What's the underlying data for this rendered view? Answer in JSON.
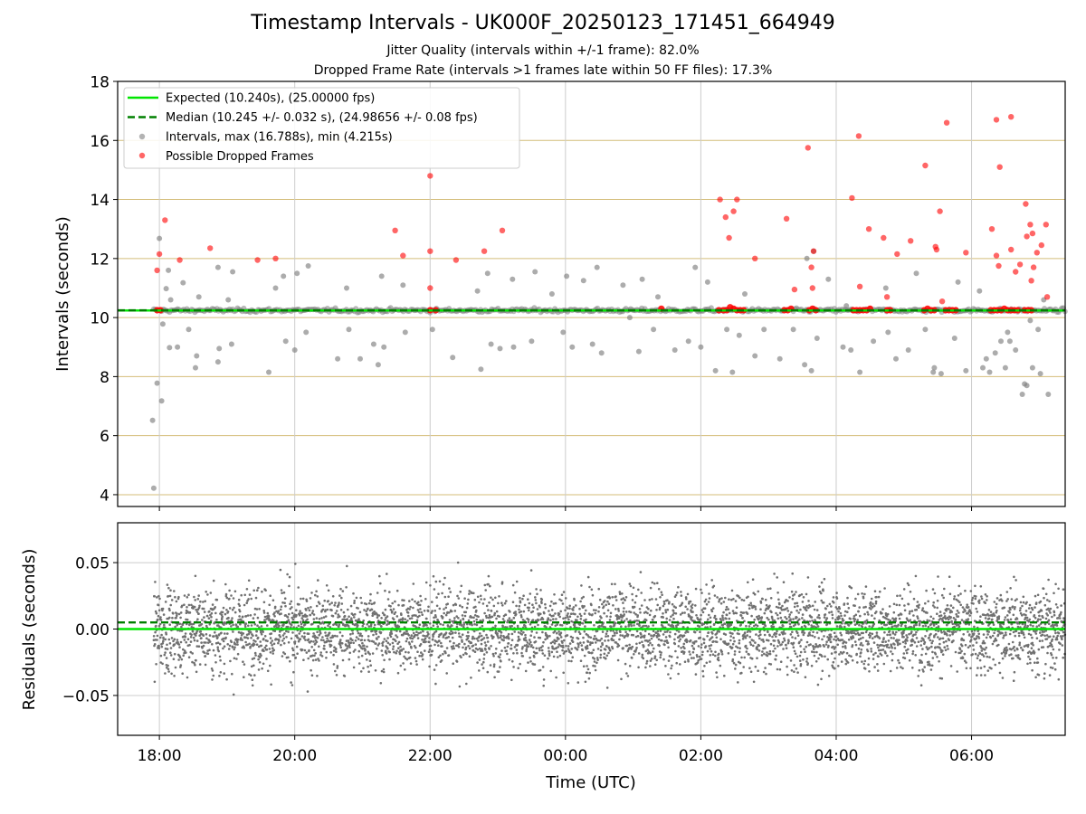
{
  "title": "Timestamp Intervals - UK000F_20250123_171451_664949",
  "subtitle1": "Jitter Quality (intervals within +/-1 frame): 82.0%",
  "subtitle2": "Dropped Frame Rate (intervals >1 frames late within 50 FF files): 17.3%",
  "colors": {
    "expected": "#00e600",
    "median": "#008000",
    "intervals": "#808080",
    "dropped": "#ff0000",
    "hgrid": "#d4bd7a",
    "vgrid": "#cccccc"
  },
  "chart_data": [
    {
      "type": "scatter",
      "ylabel": "Intervals (seconds)",
      "xlim": [
        "17:23",
        "07:23"
      ],
      "ylim": [
        3.6,
        18
      ],
      "yticks": [
        4,
        6,
        8,
        10,
        12,
        14,
        16,
        18
      ],
      "grid": true,
      "legend_position": "top-left",
      "legend": [
        "Expected (10.240s), (25.00000 fps)",
        "Median (10.245 +/- 0.032 s), (24.98656 +/- 0.08 fps)",
        "Intervals, max (16.788s), min (4.215s)",
        "Possible Dropped Frames"
      ],
      "expected_interval": 10.24,
      "median_interval": 10.245,
      "intervals_outliers": [
        [
          "17:55",
          4.22
        ],
        [
          "17:54",
          6.52
        ],
        [
          "17:58",
          7.78
        ],
        [
          "18:02",
          7.18
        ],
        [
          "18:00",
          12.68
        ],
        [
          "18:03",
          9.78
        ],
        [
          "18:06",
          10.98
        ],
        [
          "18:08",
          11.6
        ],
        [
          "18:09",
          8.98
        ],
        [
          "18:10",
          10.6
        ],
        [
          "18:16",
          9.0
        ],
        [
          "18:21",
          11.18
        ],
        [
          "18:26",
          9.6
        ],
        [
          "18:32",
          8.3
        ],
        [
          "18:33",
          8.7
        ],
        [
          "18:35",
          10.7
        ],
        [
          "18:52",
          11.7
        ],
        [
          "18:52",
          8.5
        ],
        [
          "18:53",
          8.95
        ],
        [
          "19:01",
          10.6
        ],
        [
          "19:04",
          9.1
        ],
        [
          "19:05",
          11.55
        ],
        [
          "19:37",
          8.15
        ],
        [
          "19:43",
          11.0
        ],
        [
          "19:50",
          11.4
        ],
        [
          "19:52",
          9.2
        ],
        [
          "20:00",
          8.9
        ],
        [
          "20:02",
          11.5
        ],
        [
          "20:10",
          9.5
        ],
        [
          "20:12",
          11.75
        ],
        [
          "20:38",
          8.6
        ],
        [
          "20:46",
          11.0
        ],
        [
          "20:48",
          9.6
        ],
        [
          "20:58",
          8.6
        ],
        [
          "21:10",
          9.1
        ],
        [
          "21:14",
          8.4
        ],
        [
          "21:17",
          11.4
        ],
        [
          "21:19",
          9.0
        ],
        [
          "21:36",
          11.1
        ],
        [
          "21:38",
          9.5
        ],
        [
          "22:02",
          9.6
        ],
        [
          "22:20",
          8.65
        ],
        [
          "22:42",
          10.9
        ],
        [
          "22:45",
          8.25
        ],
        [
          "22:51",
          11.5
        ],
        [
          "22:54",
          9.1
        ],
        [
          "23:02",
          8.95
        ],
        [
          "23:13",
          11.3
        ],
        [
          "23:14",
          9.0
        ],
        [
          "23:30",
          9.2
        ],
        [
          "23:33",
          11.55
        ],
        [
          "23:48",
          10.8
        ],
        [
          "23:58",
          9.5
        ],
        [
          "00:01",
          11.4
        ],
        [
          "00:06",
          9.0
        ],
        [
          "00:16",
          11.25
        ],
        [
          "00:24",
          9.1
        ],
        [
          "00:28",
          11.7
        ],
        [
          "00:32",
          8.8
        ],
        [
          "00:51",
          11.1
        ],
        [
          "00:57",
          10.0
        ],
        [
          "01:05",
          8.85
        ],
        [
          "01:08",
          11.3
        ],
        [
          "01:18",
          9.6
        ],
        [
          "01:22",
          10.7
        ],
        [
          "01:37",
          8.9
        ],
        [
          "01:49",
          9.2
        ],
        [
          "01:55",
          11.7
        ],
        [
          "02:00",
          9.0
        ],
        [
          "02:06",
          11.2
        ],
        [
          "02:13",
          8.2
        ],
        [
          "02:23",
          9.6
        ],
        [
          "02:28",
          8.15
        ],
        [
          "02:34",
          9.4
        ],
        [
          "02:39",
          10.8
        ],
        [
          "02:48",
          8.7
        ],
        [
          "02:56",
          9.6
        ],
        [
          "03:10",
          8.6
        ],
        [
          "03:22",
          9.6
        ],
        [
          "03:32",
          8.4
        ],
        [
          "03:34",
          12.0
        ],
        [
          "03:38",
          8.2
        ],
        [
          "03:40",
          12.25
        ],
        [
          "03:43",
          9.3
        ],
        [
          "03:53",
          11.3
        ],
        [
          "04:06",
          9.0
        ],
        [
          "04:09",
          10.4
        ],
        [
          "04:13",
          8.9
        ],
        [
          "04:21",
          8.15
        ],
        [
          "04:33",
          9.2
        ],
        [
          "04:44",
          11.0
        ],
        [
          "04:46",
          9.5
        ],
        [
          "04:53",
          8.6
        ],
        [
          "05:04",
          8.9
        ],
        [
          "05:11",
          11.5
        ],
        [
          "05:19",
          9.6
        ],
        [
          "05:26",
          8.15
        ],
        [
          "05:27",
          8.3
        ],
        [
          "05:33",
          8.1
        ],
        [
          "05:45",
          9.3
        ],
        [
          "05:48",
          11.2
        ],
        [
          "05:55",
          8.2
        ],
        [
          "06:07",
          10.9
        ],
        [
          "06:10",
          8.3
        ],
        [
          "06:13",
          8.6
        ],
        [
          "06:16",
          8.15
        ],
        [
          "06:21",
          8.8
        ],
        [
          "06:26",
          9.2
        ],
        [
          "06:30",
          8.3
        ],
        [
          "06:32",
          9.5
        ],
        [
          "06:34",
          9.2
        ],
        [
          "06:39",
          8.9
        ],
        [
          "06:45",
          7.4
        ],
        [
          "06:47",
          7.75
        ],
        [
          "06:49",
          7.7
        ],
        [
          "06:52",
          9.9
        ],
        [
          "06:54",
          8.3
        ],
        [
          "06:59",
          9.6
        ],
        [
          "07:01",
          8.1
        ],
        [
          "07:04",
          10.6
        ],
        [
          "07:08",
          7.4
        ]
      ],
      "possible_dropped_frames": [
        [
          "17:58",
          11.6
        ],
        [
          "18:00",
          12.15
        ],
        [
          "18:05",
          13.3
        ],
        [
          "18:18",
          11.95
        ],
        [
          "18:45",
          12.35
        ],
        [
          "19:27",
          11.95
        ],
        [
          "19:43",
          12.0
        ],
        [
          "21:29",
          12.95
        ],
        [
          "21:36",
          12.1
        ],
        [
          "22:00",
          11.0
        ],
        [
          "22:00",
          12.25
        ],
        [
          "22:00",
          14.8
        ],
        [
          "22:23",
          11.95
        ],
        [
          "22:48",
          12.25
        ],
        [
          "23:04",
          12.95
        ],
        [
          "02:17",
          14.0
        ],
        [
          "02:22",
          13.4
        ],
        [
          "02:25",
          12.7
        ],
        [
          "02:29",
          13.6
        ],
        [
          "02:32",
          14.0
        ],
        [
          "02:48",
          12.0
        ],
        [
          "03:16",
          13.35
        ],
        [
          "03:23",
          10.95
        ],
        [
          "03:35",
          15.75
        ],
        [
          "03:38",
          11.7
        ],
        [
          "03:39",
          11.0
        ],
        [
          "03:40",
          12.25
        ],
        [
          "04:14",
          14.05
        ],
        [
          "04:20",
          16.15
        ],
        [
          "04:21",
          11.05
        ],
        [
          "04:29",
          13.0
        ],
        [
          "04:42",
          12.7
        ],
        [
          "04:45",
          10.7
        ],
        [
          "04:54",
          12.15
        ],
        [
          "05:06",
          12.6
        ],
        [
          "05:19",
          15.15
        ],
        [
          "05:28",
          12.4
        ],
        [
          "05:29",
          12.3
        ],
        [
          "05:32",
          13.6
        ],
        [
          "05:34",
          10.55
        ],
        [
          "05:38",
          16.6
        ],
        [
          "05:55",
          12.2
        ],
        [
          "06:18",
          13.0
        ],
        [
          "06:22",
          12.1
        ],
        [
          "06:22",
          16.7
        ],
        [
          "06:24",
          11.75
        ],
        [
          "06:25",
          15.1
        ],
        [
          "06:35",
          16.8
        ],
        [
          "06:35",
          12.3
        ],
        [
          "06:39",
          11.55
        ],
        [
          "06:43",
          11.8
        ],
        [
          "06:48",
          13.85
        ],
        [
          "06:49",
          12.75
        ],
        [
          "06:52",
          13.15
        ],
        [
          "06:53",
          11.25
        ],
        [
          "06:54",
          12.85
        ],
        [
          "06:55",
          11.7
        ],
        [
          "06:58",
          12.2
        ],
        [
          "07:02",
          12.45
        ],
        [
          "07:06",
          13.15
        ],
        [
          "07:07",
          10.7
        ]
      ],
      "possible_dropped_frames_at_nominal": [
        [
          "17:58",
          10.25
        ],
        [
          "18:01",
          10.25
        ],
        [
          "22:00",
          10.25
        ],
        [
          "22:05",
          10.25
        ],
        [
          "01:25",
          10.3
        ],
        [
          "02:16",
          10.25
        ],
        [
          "02:20",
          10.25
        ],
        [
          "02:23",
          10.25
        ],
        [
          "02:26",
          10.35
        ],
        [
          "02:29",
          10.3
        ],
        [
          "02:32",
          10.25
        ],
        [
          "02:35",
          10.25
        ],
        [
          "02:38",
          10.25
        ],
        [
          "03:14",
          10.25
        ],
        [
          "03:17",
          10.25
        ],
        [
          "03:20",
          10.3
        ],
        [
          "03:36",
          10.25
        ],
        [
          "03:39",
          10.3
        ],
        [
          "03:42",
          10.25
        ],
        [
          "04:15",
          10.25
        ],
        [
          "04:18",
          10.25
        ],
        [
          "04:21",
          10.25
        ],
        [
          "04:24",
          10.25
        ],
        [
          "04:27",
          10.25
        ],
        [
          "04:30",
          10.3
        ],
        [
          "04:45",
          10.25
        ],
        [
          "04:48",
          10.25
        ],
        [
          "05:18",
          10.25
        ],
        [
          "05:21",
          10.3
        ],
        [
          "05:24",
          10.25
        ],
        [
          "05:27",
          10.25
        ],
        [
          "05:37",
          10.25
        ],
        [
          "05:40",
          10.25
        ],
        [
          "05:43",
          10.25
        ],
        [
          "05:46",
          10.25
        ],
        [
          "06:17",
          10.25
        ],
        [
          "06:20",
          10.25
        ],
        [
          "06:23",
          10.25
        ],
        [
          "06:26",
          10.25
        ],
        [
          "06:29",
          10.3
        ],
        [
          "06:32",
          10.25
        ],
        [
          "06:35",
          10.25
        ],
        [
          "06:38",
          10.25
        ],
        [
          "06:41",
          10.25
        ],
        [
          "06:47",
          10.25
        ],
        [
          "06:50",
          10.25
        ],
        [
          "06:53",
          10.25
        ]
      ]
    },
    {
      "type": "scatter",
      "xlabel": "Time (UTC)",
      "ylabel": "Residuals (seconds)",
      "xlim": [
        "17:23",
        "07:23"
      ],
      "ylim": [
        -0.08,
        0.08
      ],
      "xticks": [
        "18:00",
        "20:00",
        "22:00",
        "00:00",
        "02:00",
        "04:00",
        "06:00"
      ],
      "yticks": [
        "−0.05",
        "0.00",
        "0.05"
      ],
      "grid": true,
      "expected_line": 0.0,
      "median_line": 0.005,
      "data_range": [
        "17:55",
        "07:23"
      ],
      "approx_count": 4900,
      "residual_stddev": 0.022
    }
  ]
}
